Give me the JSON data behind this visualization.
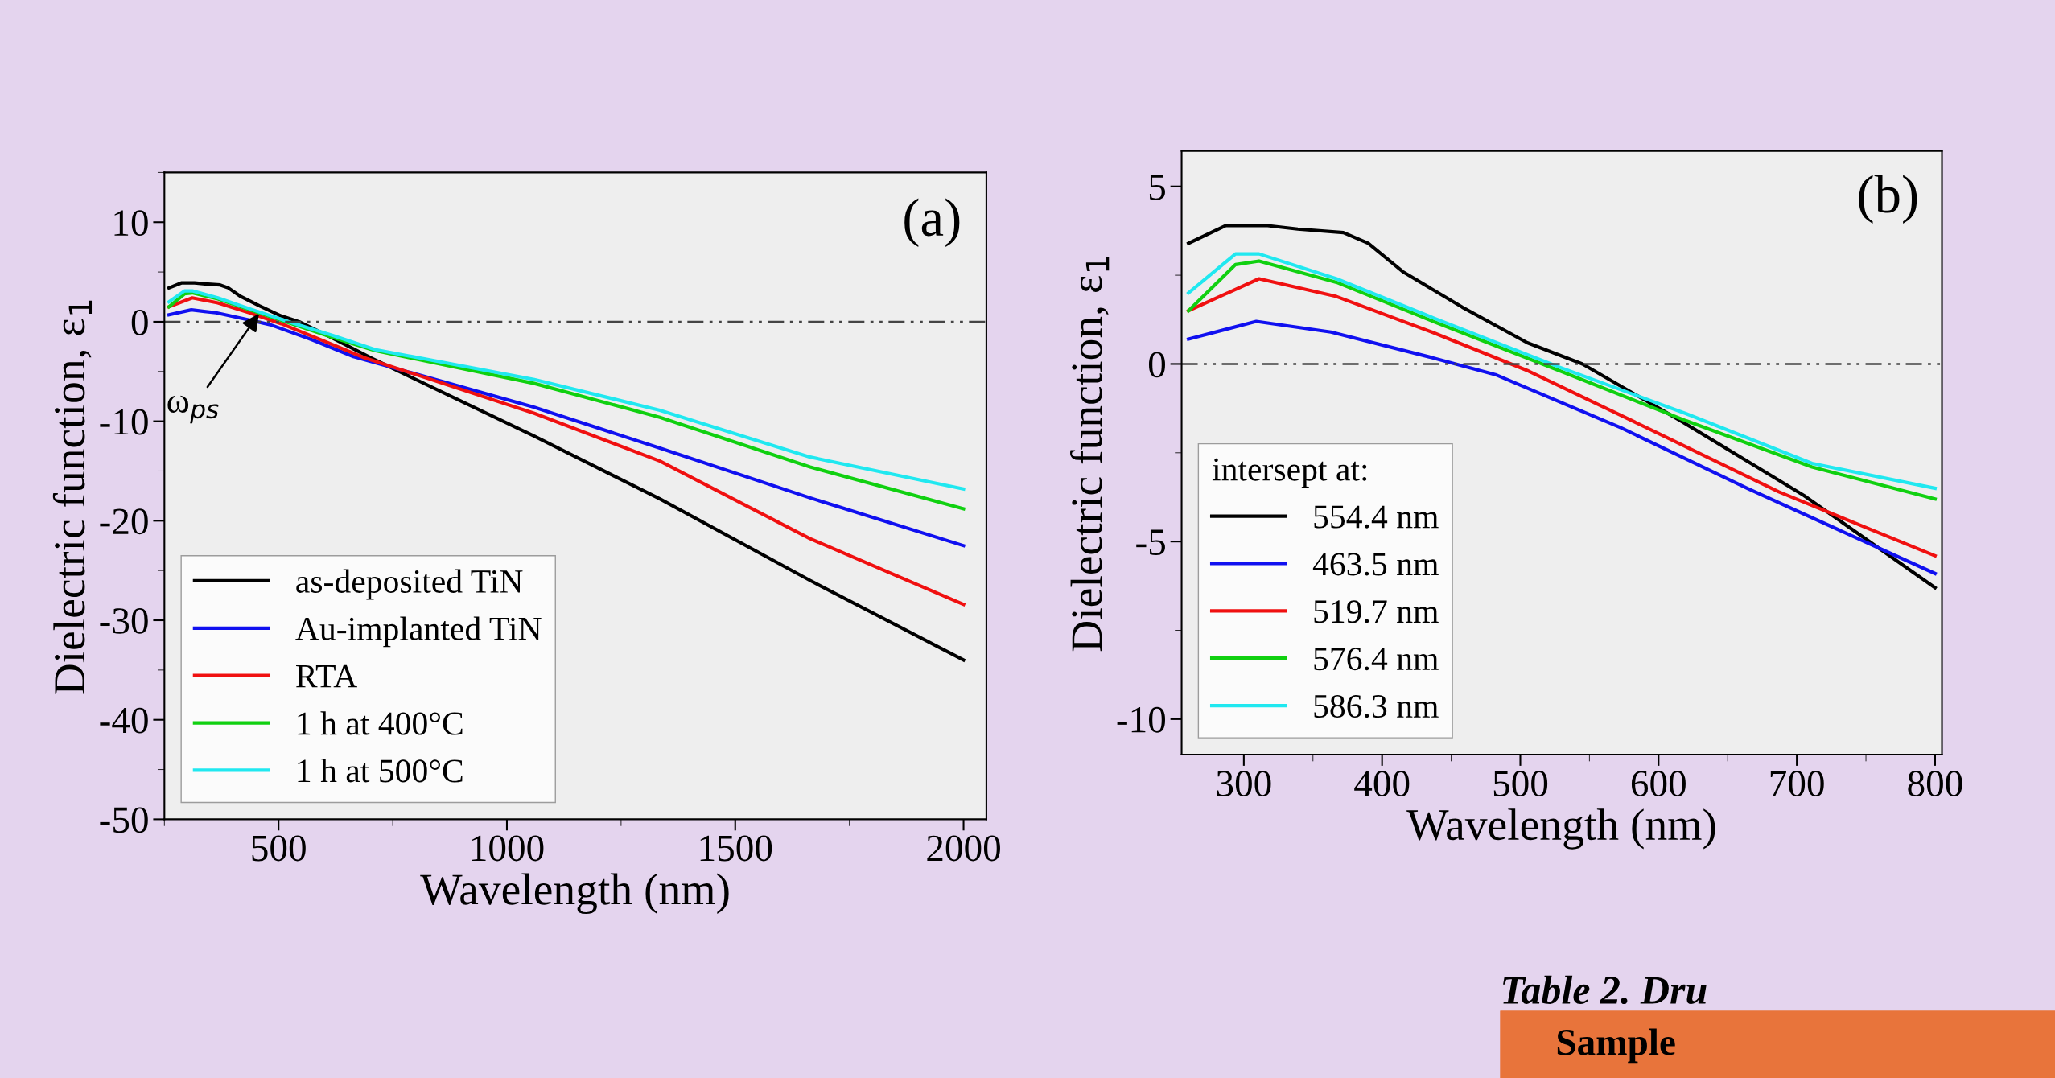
{
  "chart_data": [
    {
      "type": "line",
      "xlabel": "Wavelength (nm)",
      "ylabel": "Dielectric function, ε$_{1}$",
      "xlim": [
        250,
        2050
      ],
      "xticks": [
        500,
        1000,
        1500,
        2000
      ],
      "ylim": [
        -50,
        15
      ],
      "yticks": [
        -50,
        -40,
        -30,
        -20,
        -10,
        0,
        10
      ],
      "grid": false,
      "legend": "bottom left",
      "marker": "none",
      "line_style": "solid",
      "ref_lines": [
        {
          "axis": "y",
          "value": 0,
          "color": "#444444",
          "line_style": "dashdot"
        }
      ],
      "annotations": [
        "(a)",
        {
          "text": "ω$_{ps}$",
          "x": 460,
          "y": 1
        }
      ],
      "series": [
        {
          "name": "as-deposited TiN",
          "color": "#000000",
          "x": [
            260,
            287,
            316,
            339,
            372,
            390,
            415,
            458,
            505,
            545,
            616,
            705,
            1060,
            1335,
            1664,
            2000
          ],
          "values": [
            3.4,
            3.9,
            3.9,
            3.8,
            3.7,
            3.4,
            2.6,
            1.6,
            0.6,
            0.0,
            -1.6,
            -3.7,
            -11.5,
            -17.8,
            -26,
            -34
          ]
        },
        {
          "name": "Au-implanted TiN",
          "color": "#1010f0",
          "x": [
            260,
            309,
            363,
            434,
            482,
            573,
            664,
            1060,
            1335,
            1664,
            2000
          ],
          "values": [
            0.7,
            1.2,
            0.9,
            0.2,
            -0.3,
            -1.8,
            -3.5,
            -8.6,
            -12.7,
            -17.7,
            -22.5
          ]
        },
        {
          "name": "RTA",
          "color": "#f01010",
          "x": [
            260,
            311,
            367,
            436,
            506,
            597,
            687,
            1060,
            1335,
            1664,
            2000
          ],
          "values": [
            1.5,
            2.4,
            1.9,
            0.9,
            -0.2,
            -1.9,
            -3.6,
            -9.2,
            -14,
            -21.8,
            -28.4
          ]
        },
        {
          "name": "1 h at 400°C",
          "color": "#10d010",
          "x": [
            260,
            294,
            311,
            367,
            437,
            529,
            620,
            711,
            1060,
            1335,
            1664,
            2000
          ],
          "values": [
            1.5,
            2.8,
            2.9,
            2.3,
            1.2,
            -0.2,
            -1.6,
            -2.9,
            -6.2,
            -9.6,
            -14.6,
            -18.8
          ]
        },
        {
          "name": "1 h at 500°C",
          "color": "#20e8f0",
          "x": [
            260,
            294,
            311,
            367,
            437,
            529,
            620,
            711,
            1060,
            1335,
            1664,
            2000
          ],
          "values": [
            2.0,
            3.1,
            3.1,
            2.4,
            1.3,
            -0.1,
            -1.4,
            -2.8,
            -5.8,
            -8.9,
            -13.6,
            -16.8
          ]
        }
      ]
    },
    {
      "type": "line",
      "xlabel": "Wavelength (nm)",
      "ylabel": "Dielectric function, ε$_{1}$",
      "xlim": [
        255,
        805
      ],
      "xticks": [
        300,
        400,
        500,
        600,
        700,
        800
      ],
      "ylim": [
        -11,
        6
      ],
      "yticks": [
        -10,
        -5,
        0,
        5
      ],
      "grid": false,
      "legend": "bottom left",
      "legend_title": "intersept at:",
      "marker": "none",
      "line_style": "solid",
      "ref_lines": [
        {
          "axis": "y",
          "value": 0,
          "color": "#444444",
          "line_style": "dashdot"
        }
      ],
      "annotations": [
        "(b)"
      ],
      "series": [
        {
          "name": "554.4 nm",
          "color": "#000000",
          "x": [
            260,
            287,
            316,
            339,
            372,
            390,
            415,
            458,
            505,
            545,
            616,
            705,
            800
          ],
          "values": [
            3.4,
            3.9,
            3.9,
            3.8,
            3.7,
            3.4,
            2.6,
            1.6,
            0.6,
            0.0,
            -1.6,
            -3.7,
            -6.3
          ]
        },
        {
          "name": "463.5 nm",
          "color": "#1010f0",
          "x": [
            260,
            309,
            363,
            434,
            482,
            573,
            664,
            800
          ],
          "values": [
            0.7,
            1.2,
            0.9,
            0.2,
            -0.3,
            -1.8,
            -3.5,
            -5.9
          ]
        },
        {
          "name": "519.7 nm",
          "color": "#f01010",
          "x": [
            260,
            311,
            367,
            436,
            506,
            597,
            687,
            800
          ],
          "values": [
            1.5,
            2.4,
            1.9,
            0.9,
            -0.2,
            -1.9,
            -3.6,
            -5.4
          ]
        },
        {
          "name": "576.4 nm",
          "color": "#10d010",
          "x": [
            260,
            294,
            311,
            367,
            437,
            529,
            620,
            711,
            800
          ],
          "values": [
            1.5,
            2.8,
            2.9,
            2.3,
            1.2,
            -0.2,
            -1.6,
            -2.9,
            -3.8
          ]
        },
        {
          "name": "586.3 nm",
          "color": "#20e8f0",
          "x": [
            260,
            294,
            311,
            367,
            437,
            529,
            620,
            711,
            800
          ],
          "values": [
            2.0,
            3.1,
            3.1,
            2.4,
            1.3,
            -0.1,
            -1.4,
            -2.8,
            -3.5
          ]
        }
      ]
    },
    {
      "type": "other",
      "title": "Table 2. Dru",
      "annotations": [
        "Sample"
      ]
    }
  ]
}
